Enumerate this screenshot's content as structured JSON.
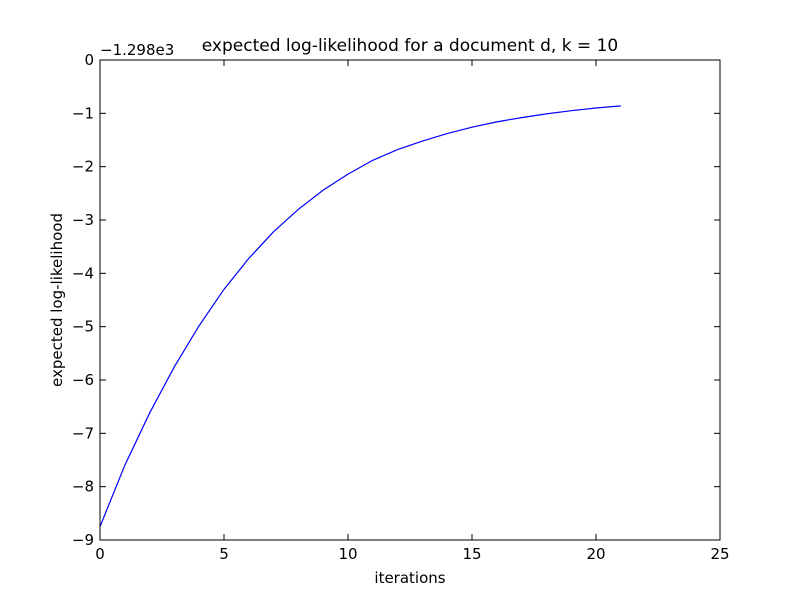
{
  "chart_data": {
    "type": "line",
    "title": "expected log-likelihood for a document d, k = 10",
    "xlabel": "iterations",
    "ylabel": "expected log-likelihood",
    "offset_label": "−1.298e3",
    "xlim": [
      0,
      25
    ],
    "ylim": [
      -9,
      0
    ],
    "x_ticks": [
      0,
      5,
      10,
      15,
      20,
      25
    ],
    "y_ticks": [
      0,
      -1,
      -2,
      -3,
      -4,
      -5,
      -6,
      -7,
      -8,
      -9
    ],
    "x_tick_labels": [
      "0",
      "5",
      "10",
      "15",
      "20",
      "25"
    ],
    "y_tick_labels": [
      "0",
      "−1",
      "−2",
      "−3",
      "−4",
      "−5",
      "−6",
      "−7",
      "−8",
      "−9"
    ],
    "grid": false,
    "colors": {
      "line": "#0000ff",
      "axes": "#000000",
      "background": "#ffffff"
    },
    "series": [
      {
        "x": [
          0,
          1,
          2,
          3,
          4,
          5,
          6,
          7,
          8,
          9,
          10,
          11,
          12,
          13,
          14,
          15,
          16,
          17,
          18,
          19,
          20,
          21
        ],
        "y": [
          -8.75,
          -7.6,
          -6.62,
          -5.75,
          -4.98,
          -4.3,
          -3.72,
          -3.22,
          -2.8,
          -2.44,
          -2.14,
          -1.88,
          -1.68,
          -1.52,
          -1.38,
          -1.26,
          -1.16,
          -1.08,
          -1.01,
          -0.95,
          -0.9,
          -0.86
        ]
      }
    ]
  }
}
